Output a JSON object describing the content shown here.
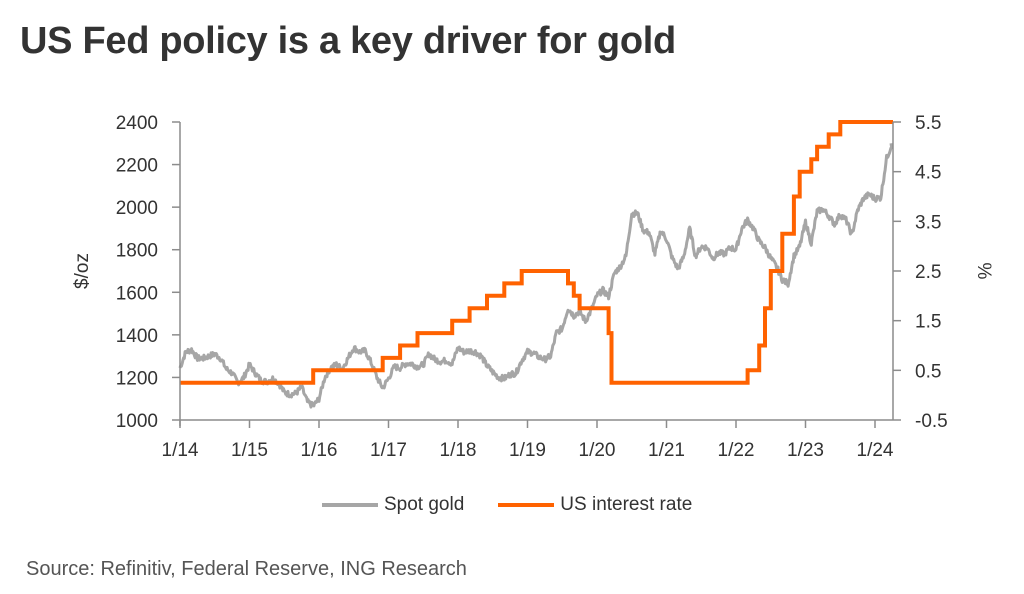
{
  "chart_data": {
    "type": "line",
    "title": "US Fed policy is a key driver for gold",
    "source": "Source: Refinitiv, Federal Reserve, ING Research",
    "xlabel": "",
    "ylabel_left": "$/oz",
    "ylabel_right": "%",
    "x_range": [
      "2014-01",
      "2024-04"
    ],
    "x_ticks": [
      "1/14",
      "1/15",
      "1/16",
      "1/17",
      "1/18",
      "1/19",
      "1/20",
      "1/21",
      "1/22",
      "1/23",
      "1/24"
    ],
    "y_left": {
      "min": 1000,
      "max": 2400,
      "ticks": [
        "1000",
        "1200",
        "1400",
        "1600",
        "1800",
        "2000",
        "2200",
        "2400"
      ]
    },
    "y_right": {
      "min": -0.5,
      "max": 5.5,
      "ticks": [
        "-0.5",
        "0.5",
        "1.5",
        "2.5",
        "3.5",
        "4.5",
        "5.5"
      ]
    },
    "grid": false,
    "legend_position": "bottom",
    "colors": {
      "gold": "#a6a6a6",
      "rate": "#ff6200",
      "axis": "#8c8c8c"
    },
    "series": [
      {
        "name": "Spot gold",
        "axis": "left",
        "style": "line",
        "start": "2014-01",
        "frequency": "monthly",
        "values": [
          1245,
          1320,
          1330,
          1290,
          1290,
          1300,
          1310,
          1290,
          1240,
          1220,
          1175,
          1200,
          1260,
          1220,
          1185,
          1180,
          1195,
          1175,
          1130,
          1120,
          1125,
          1155,
          1085,
          1065,
          1100,
          1200,
          1245,
          1260,
          1240,
          1290,
          1340,
          1320,
          1325,
          1270,
          1200,
          1150,
          1195,
          1250,
          1245,
          1265,
          1265,
          1250,
          1260,
          1310,
          1285,
          1275,
          1280,
          1265,
          1340,
          1320,
          1325,
          1320,
          1300,
          1255,
          1225,
          1200,
          1195,
          1215,
          1220,
          1280,
          1320,
          1315,
          1295,
          1285,
          1300,
          1410,
          1430,
          1525,
          1490,
          1510,
          1465,
          1515,
          1585,
          1610,
          1580,
          1690,
          1720,
          1770,
          1970,
          1970,
          1890,
          1880,
          1780,
          1890,
          1850,
          1760,
          1710,
          1770,
          1900,
          1770,
          1815,
          1810,
          1760,
          1785,
          1780,
          1810,
          1800,
          1900,
          1940,
          1900,
          1840,
          1810,
          1760,
          1720,
          1660,
          1640,
          1770,
          1815,
          1930,
          1830,
          1980,
          1990,
          1960,
          1920,
          1965,
          1940,
          1870,
          1985,
          2040,
          2060,
          2040,
          2045,
          2230,
          2300
        ]
      },
      {
        "name": "US interest rate",
        "axis": "right",
        "style": "step",
        "steps": [
          {
            "date": "2014-01",
            "value": 0.25
          },
          {
            "date": "2015-12",
            "value": 0.5
          },
          {
            "date": "2016-12",
            "value": 0.75
          },
          {
            "date": "2017-03",
            "value": 1.0
          },
          {
            "date": "2017-06",
            "value": 1.25
          },
          {
            "date": "2017-12",
            "value": 1.5
          },
          {
            "date": "2018-03",
            "value": 1.75
          },
          {
            "date": "2018-06",
            "value": 2.0
          },
          {
            "date": "2018-09",
            "value": 2.25
          },
          {
            "date": "2018-12",
            "value": 2.5
          },
          {
            "date": "2019-08",
            "value": 2.25
          },
          {
            "date": "2019-09",
            "value": 2.0
          },
          {
            "date": "2019-10",
            "value": 1.75
          },
          {
            "date": "2020-03",
            "value": 1.25
          },
          {
            "date": "2020-03.5",
            "value": 0.25
          },
          {
            "date": "2022-03",
            "value": 0.5
          },
          {
            "date": "2022-05",
            "value": 1.0
          },
          {
            "date": "2022-06",
            "value": 1.75
          },
          {
            "date": "2022-07",
            "value": 2.5
          },
          {
            "date": "2022-09",
            "value": 3.25
          },
          {
            "date": "2022-11",
            "value": 4.0
          },
          {
            "date": "2022-12",
            "value": 4.5
          },
          {
            "date": "2023-02",
            "value": 4.75
          },
          {
            "date": "2023-03",
            "value": 5.0
          },
          {
            "date": "2023-05",
            "value": 5.25
          },
          {
            "date": "2023-07",
            "value": 5.5
          }
        ],
        "end": "2024-04"
      }
    ]
  },
  "legend": {
    "gold_label": "Spot gold",
    "rate_label": "US interest rate"
  }
}
